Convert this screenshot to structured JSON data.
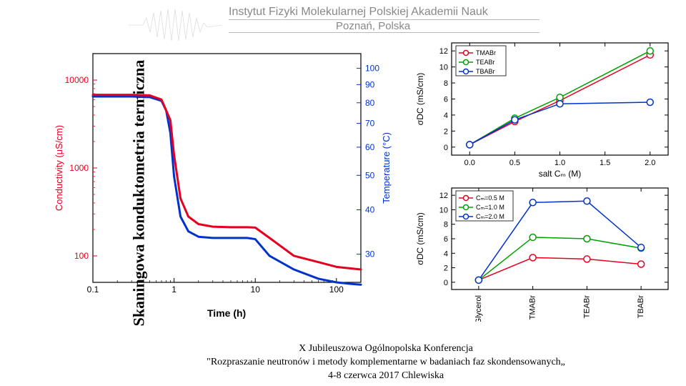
{
  "vertical_title": "Skaningowa konduktometria termiczna",
  "header": {
    "institution": "Instytut Fizyki Molekularnej Polskiej Akademii Nauk",
    "city": "Poznań, Polska"
  },
  "time_axis_label": "Time (h)",
  "footer": {
    "line1": "X Jubileuszowa Ogólnopolska Konferencja",
    "line2": "\"Rozpraszanie neutronów i metody komplementarne w badaniach faz skondensowanych„",
    "line3": "4-8 czerwca 2017 Chlewiska"
  },
  "colors": {
    "red": "#e6001f",
    "blue": "#0033cc",
    "green": "#00a000",
    "axis": "#000000",
    "bg": "#ffffff",
    "grey": "#888888"
  },
  "main_chart": {
    "type": "line-dual-axis-loglog",
    "xlabel": "",
    "ylabel_left": "Conductivity (μS/cm)",
    "ylabel_left_color": "#e6001f",
    "ylabel_right": "Temperature (°C)",
    "ylabel_right_color": "#0033cc",
    "xlim": [
      0.1,
      200
    ],
    "xticks": [
      0.1,
      1,
      10,
      100
    ],
    "left_ylim": [
      50,
      20000
    ],
    "left_yticks": [
      100,
      1000,
      10000
    ],
    "left_tick_labels": [
      "100",
      "1000",
      "10000"
    ],
    "right_ylim": [
      25,
      110
    ],
    "right_yticks": [
      30,
      40,
      50,
      60,
      70,
      80,
      90,
      100
    ],
    "right_tick_labels": [
      "30",
      "40",
      "50",
      "60",
      "70",
      "80",
      "90",
      "100"
    ],
    "series_red": {
      "color": "#e6001f",
      "width": 3,
      "x": [
        0.1,
        0.3,
        0.5,
        0.7,
        0.9,
        1.0,
        1.2,
        1.5,
        2,
        3,
        5,
        8,
        10,
        15,
        30,
        60,
        100,
        150,
        200
      ],
      "y": [
        6800,
        6800,
        6700,
        6000,
        3500,
        1400,
        450,
        280,
        230,
        215,
        212,
        212,
        210,
        160,
        100,
        85,
        75,
        72,
        70
      ]
    },
    "series_blue": {
      "color": "#0033cc",
      "width": 3,
      "x": [
        0.1,
        0.3,
        0.5,
        0.7,
        0.8,
        0.9,
        1.0,
        1.2,
        1.5,
        2,
        3,
        5,
        8,
        10,
        15,
        30,
        60,
        100,
        150,
        200
      ],
      "y": [
        6500,
        6500,
        6400,
        5800,
        4500,
        2500,
        800,
        280,
        190,
        165,
        160,
        160,
        160,
        155,
        100,
        70,
        55,
        50,
        48,
        47
      ]
    }
  },
  "right_top_chart": {
    "type": "line-markers",
    "xlabel": "salt Cₘ (M)",
    "ylabel": "σDC (mS/cm)",
    "xlim": [
      -0.2,
      2.2
    ],
    "xticks": [
      0.0,
      0.5,
      1.0,
      1.5,
      2.0
    ],
    "ylim": [
      -1,
      13
    ],
    "yticks": [
      0,
      2,
      4,
      6,
      8,
      10,
      12
    ],
    "legend_pos": "top-left",
    "series": [
      {
        "name": "TMABr",
        "color": "#e6001f",
        "marker": "circle",
        "x": [
          0,
          0.5,
          1.0,
          2.0
        ],
        "y": [
          0.3,
          3.2,
          5.8,
          11.5
        ]
      },
      {
        "name": "TEABr",
        "color": "#00a000",
        "marker": "circle",
        "x": [
          0,
          0.5,
          1.0,
          2.0
        ],
        "y": [
          0.3,
          3.6,
          6.2,
          12.0
        ]
      },
      {
        "name": "TBABr",
        "color": "#0033cc",
        "marker": "circle",
        "x": [
          0,
          0.5,
          1.0,
          2.0
        ],
        "y": [
          0.3,
          3.4,
          5.4,
          5.6
        ]
      }
    ]
  },
  "right_bottom_chart": {
    "type": "line-markers-categorical",
    "ylabel": "σDC (mS/cm)",
    "categories": [
      "Glycerol",
      "TMABr",
      "TEABr",
      "TBABr"
    ],
    "ylim": [
      -1,
      13
    ],
    "yticks": [
      0,
      2,
      4,
      6,
      8,
      10,
      12
    ],
    "legend_pos": "top-left",
    "legend_items": [
      "Cₘ=0.5 M",
      "Cₘ=1.0 M",
      "Cₘ=2.0 M"
    ],
    "series": [
      {
        "name": "Cm=0.5 M",
        "color": "#e6001f",
        "marker": "circle",
        "y": [
          0.3,
          3.4,
          3.2,
          2.5
        ]
      },
      {
        "name": "Cm=1.0 M",
        "color": "#00a000",
        "marker": "circle",
        "y": [
          0.3,
          6.2,
          6.0,
          4.7
        ]
      },
      {
        "name": "Cm=2.0 M",
        "color": "#0033cc",
        "marker": "circle",
        "y": [
          0.3,
          11.0,
          11.2,
          4.8
        ]
      }
    ]
  }
}
